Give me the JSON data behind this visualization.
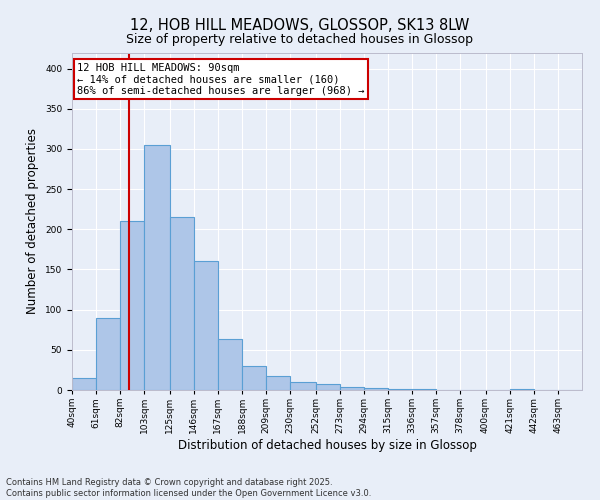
{
  "title": "12, HOB HILL MEADOWS, GLOSSOP, SK13 8LW",
  "subtitle": "Size of property relative to detached houses in Glossop",
  "xlabel": "Distribution of detached houses by size in Glossop",
  "ylabel": "Number of detached properties",
  "bar_edges": [
    40,
    61,
    82,
    103,
    125,
    146,
    167,
    188,
    209,
    230,
    252,
    273,
    294,
    315,
    336,
    357,
    378,
    400,
    421,
    442,
    463
  ],
  "bar_heights": [
    15,
    90,
    210,
    305,
    215,
    160,
    63,
    30,
    18,
    10,
    7,
    4,
    2,
    1,
    1,
    0,
    0,
    0,
    1,
    0,
    0
  ],
  "bar_color": "#aec6e8",
  "bar_edgecolor": "#5a9fd4",
  "bar_linewidth": 0.8,
  "vline_x": 90,
  "vline_color": "#cc0000",
  "vline_linewidth": 1.5,
  "annotation_text": "12 HOB HILL MEADOWS: 90sqm\n← 14% of detached houses are smaller (160)\n86% of semi-detached houses are larger (968) →",
  "annotation_box_color": "#cc0000",
  "ylim": [
    0,
    420
  ],
  "yticks": [
    0,
    50,
    100,
    150,
    200,
    250,
    300,
    350,
    400
  ],
  "background_color": "#e8eef8",
  "grid_color": "#ffffff",
  "footer_text": "Contains HM Land Registry data © Crown copyright and database right 2025.\nContains public sector information licensed under the Open Government Licence v3.0.",
  "title_fontsize": 10.5,
  "subtitle_fontsize": 9,
  "axis_label_fontsize": 8.5,
  "tick_fontsize": 6.5,
  "annotation_fontsize": 7.5,
  "footer_fontsize": 6
}
